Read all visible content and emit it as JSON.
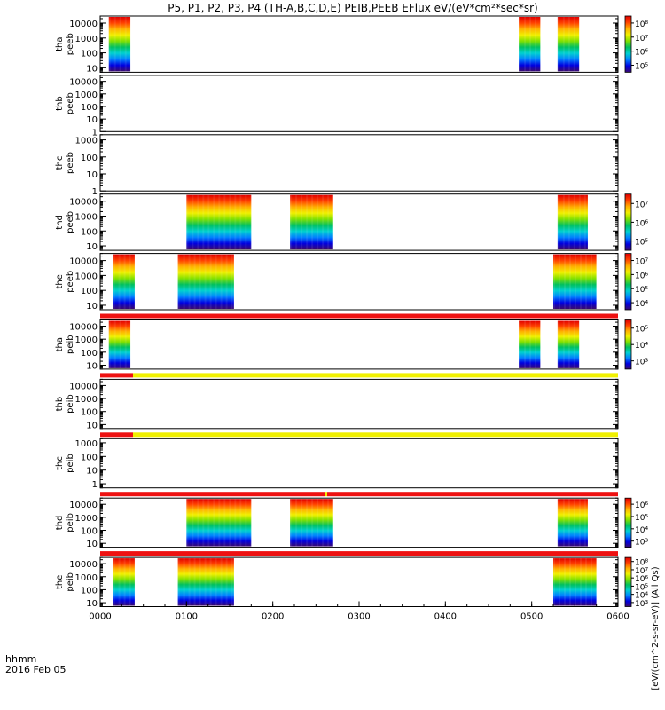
{
  "title": "P5, P1, P2, P3, P4 (TH-A,B,C,D,E) PEIB,PEEB EFlux eV/(eV*cm²*sec*sr)",
  "colorbar_label": "[eV/(cm^2-s-sr-eV)] (All Qs)",
  "time_axis": {
    "ticks": [
      "0000",
      "0100",
      "0200",
      "0300",
      "0400",
      "0500",
      "0600"
    ],
    "label_line1": "hhmm",
    "label_line2": "2016 Feb 05"
  },
  "colors": {
    "spectrum": [
      "#3b0a6e",
      "#0000e0",
      "#0080ff",
      "#00d0d0",
      "#00c060",
      "#80e000",
      "#f0f000",
      "#ffb000",
      "#ff4000",
      "#e00000"
    ],
    "bar_red": "#ee1111",
    "bar_yellow": "#f0f000"
  },
  "chart_data": {
    "type": "heatmap",
    "x_range_hours": [
      0,
      6
    ],
    "panels": [
      {
        "probe": "tha",
        "product": "peeb",
        "ylabel_line1": "tha",
        "ylabel_line2": "peeb",
        "ylim": [
          5,
          30000
        ],
        "yticks": [
          "10",
          "100",
          "1000",
          "10000"
        ],
        "colorbar": true,
        "colorbar_ticks": [
          "10⁵",
          "10⁶",
          "10⁷",
          "10⁸"
        ],
        "intervals": [
          [
            0.1,
            0.35
          ],
          [
            4.85,
            5.1
          ],
          [
            5.3,
            5.55
          ]
        ]
      },
      {
        "probe": "thb",
        "product": "peeb",
        "ylabel_line1": "thb",
        "ylabel_line2": "peeb",
        "ylim": [
          1,
          30000
        ],
        "yticks": [
          "1",
          "10",
          "100",
          "1000",
          "10000"
        ],
        "colorbar": false,
        "intervals": []
      },
      {
        "probe": "thc",
        "product": "peeb",
        "ylabel_line1": "thc",
        "ylabel_line2": "peeb",
        "ylim": [
          1,
          2000
        ],
        "yticks": [
          "1",
          "10",
          "100",
          "1000"
        ],
        "colorbar": false,
        "intervals": []
      },
      {
        "probe": "thd",
        "product": "peeb",
        "ylabel_line1": "thd",
        "ylabel_line2": "peeb",
        "ylim": [
          5,
          30000
        ],
        "yticks": [
          "10",
          "100",
          "1000",
          "10000"
        ],
        "colorbar": true,
        "colorbar_ticks": [
          "10⁵",
          "10⁶",
          "10⁷"
        ],
        "intervals": [
          [
            1.0,
            1.75
          ],
          [
            2.2,
            2.7
          ],
          [
            5.3,
            5.65
          ]
        ]
      },
      {
        "probe": "the",
        "product": "peeb",
        "ylabel_line1": "the",
        "ylabel_line2": "peeb",
        "ylim": [
          5,
          30000
        ],
        "yticks": [
          "10",
          "100",
          "1000",
          "10000"
        ],
        "colorbar": true,
        "colorbar_ticks": [
          "10⁴",
          "10⁵",
          "10⁶",
          "10⁷"
        ],
        "intervals": [
          [
            0.15,
            0.4
          ],
          [
            0.9,
            1.55
          ],
          [
            5.25,
            5.75
          ]
        ]
      },
      {
        "probe": "tha",
        "product": "peib",
        "ylabel_line1": "tha",
        "ylabel_line2": "peib",
        "ylim": [
          5,
          30000
        ],
        "yticks": [
          "10",
          "100",
          "1000",
          "10000"
        ],
        "colorbar": true,
        "colorbar_ticks": [
          "10³",
          "10⁴",
          "10⁵"
        ],
        "status_bar": [
          [
            0,
            6,
            "red"
          ]
        ],
        "intervals": [
          [
            0.1,
            0.35
          ],
          [
            4.85,
            5.1
          ],
          [
            5.3,
            5.55
          ]
        ]
      },
      {
        "probe": "thb",
        "product": "peib",
        "ylabel_line1": "thb",
        "ylabel_line2": "peib",
        "ylim": [
          5,
          30000
        ],
        "yticks": [
          "10",
          "100",
          "1000",
          "10000"
        ],
        "colorbar": false,
        "status_bar": [
          [
            0,
            0.38,
            "red"
          ],
          [
            0.38,
            6,
            "yellow"
          ]
        ],
        "intervals": []
      },
      {
        "probe": "thc",
        "product": "peib",
        "ylabel_line1": "thc",
        "ylabel_line2": "peib",
        "ylim": [
          0.5,
          2000
        ],
        "yticks": [
          "1",
          "10",
          "100",
          "1000"
        ],
        "colorbar": false,
        "status_bar": [
          [
            0,
            0.38,
            "red"
          ],
          [
            0.38,
            6,
            "yellow"
          ]
        ],
        "intervals": []
      },
      {
        "probe": "thd",
        "product": "peib",
        "ylabel_line1": "thd",
        "ylabel_line2": "peib",
        "ylim": [
          5,
          30000
        ],
        "yticks": [
          "10",
          "100",
          "1000",
          "10000"
        ],
        "colorbar": true,
        "colorbar_ticks": [
          "10³",
          "10⁴",
          "10⁵",
          "10⁶"
        ],
        "status_bar": [
          [
            0,
            2.6,
            "red"
          ],
          [
            2.6,
            2.63,
            "yellow"
          ],
          [
            2.63,
            6,
            "red"
          ]
        ],
        "intervals": [
          [
            1.0,
            1.75
          ],
          [
            2.2,
            2.7
          ],
          [
            5.3,
            5.65
          ]
        ]
      },
      {
        "probe": "the",
        "product": "peib",
        "ylabel_line1": "the",
        "ylabel_line2": "peib",
        "ylim": [
          5,
          30000
        ],
        "yticks": [
          "10",
          "100",
          "1000",
          "10000"
        ],
        "colorbar": true,
        "colorbar_ticks": [
          "10³",
          "10⁴",
          "10⁵",
          "10⁶",
          "10⁷",
          "10⁸"
        ],
        "status_bar": [
          [
            0,
            6,
            "red"
          ]
        ],
        "intervals": [
          [
            0.15,
            0.4
          ],
          [
            0.9,
            1.55
          ],
          [
            5.25,
            5.75
          ]
        ]
      }
    ]
  }
}
